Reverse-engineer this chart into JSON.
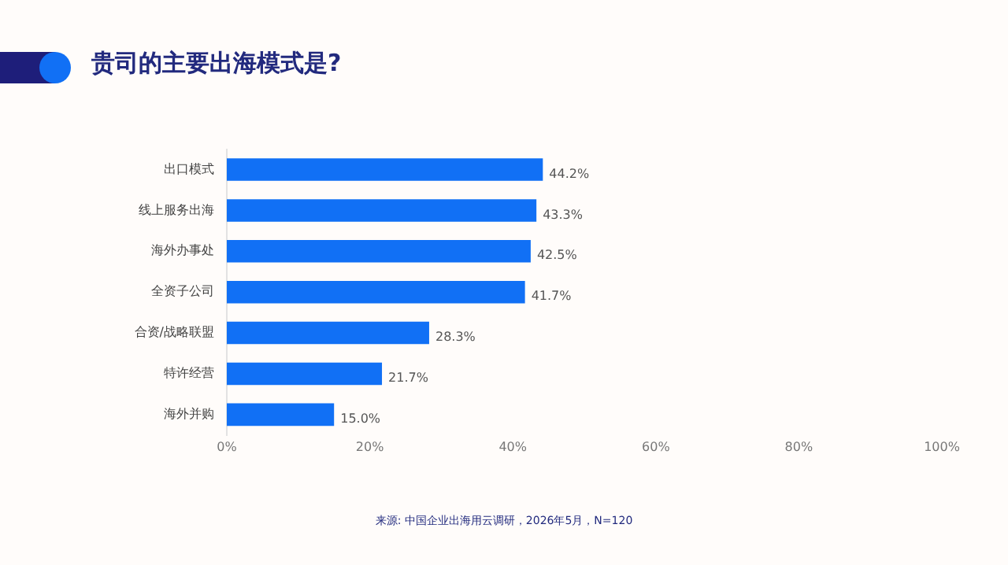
{
  "chart_data": {
    "type": "bar",
    "orientation": "horizontal",
    "title": "贵司的主要出海模式是?",
    "categories": [
      "出口模式",
      "线上服务出海",
      "海外办事处",
      "全资子公司",
      "合资/战略联盟",
      "特许经营",
      "海外并购"
    ],
    "values": [
      44.2,
      43.3,
      42.5,
      41.7,
      28.3,
      21.7,
      15.0
    ],
    "value_labels": [
      "44.2%",
      "43.3%",
      "42.5%",
      "41.7%",
      "28.3%",
      "21.7%",
      "15.0%"
    ],
    "color": "#1170f5",
    "xlim": [
      0,
      100
    ],
    "xticks": [
      {
        "value": 0,
        "label": "0%"
      },
      {
        "value": 20,
        "label": "20%"
      },
      {
        "value": 40,
        "label": "40%"
      },
      {
        "value": 60,
        "label": "60%"
      },
      {
        "value": 80,
        "label": "80%"
      },
      {
        "value": 100,
        "label": "100%"
      }
    ],
    "grid": false,
    "legend": false,
    "annotations": [
      "来源: 中国企业出海用云调研，2026年5月，N=120"
    ]
  }
}
